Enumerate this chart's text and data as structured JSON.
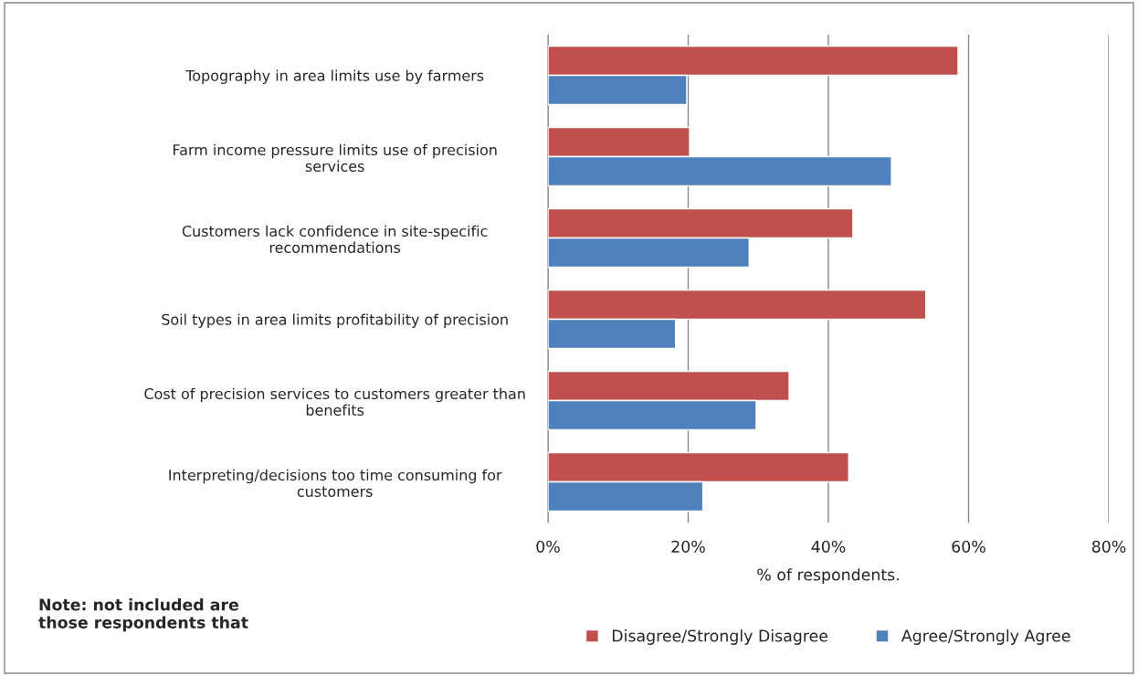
{
  "chart_data": {
    "type": "bar",
    "orientation": "horizontal",
    "categories": [
      "Topography in area limits use by farmers",
      "Farm income pressure limits use of precision\nservices",
      "Customers lack confidence in site-specific\nrecommendations",
      "Soil types in area limits profitability of precision",
      "Cost of precision services to customers greater than\nbenefits",
      "Interpreting/decisions too time consuming for\ncustomers"
    ],
    "series": [
      {
        "name": "Disagree/Strongly Disagree",
        "color": "#c0504d",
        "values": [
          58.5,
          20.2,
          43.5,
          53.9,
          34.4,
          42.9
        ]
      },
      {
        "name": "Agree/Strongly Agree",
        "color": "#4f81bd",
        "values": [
          19.8,
          49.0,
          28.7,
          18.2,
          29.7,
          22.1
        ]
      }
    ],
    "xlim": [
      0,
      80
    ],
    "xticks": [
      {
        "value": 0,
        "label": "0%"
      },
      {
        "value": 20,
        "label": "20%"
      },
      {
        "value": 40,
        "label": "40%"
      },
      {
        "value": 60,
        "label": "60%"
      },
      {
        "value": 80,
        "label": "80%"
      }
    ],
    "xlabel": "% of respondents.",
    "grid": "x",
    "legend": "bottom",
    "annotations": [
      "Note: not included are\nthose respondents that"
    ]
  }
}
